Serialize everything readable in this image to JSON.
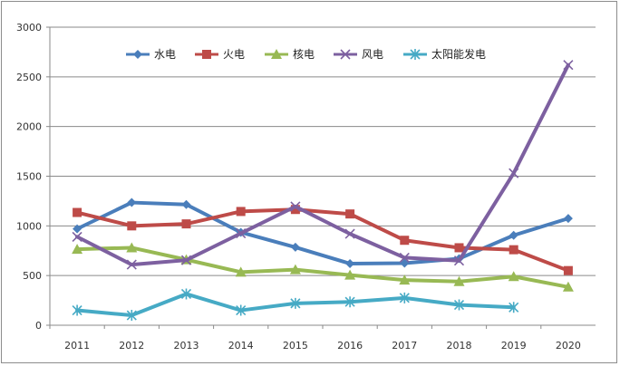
{
  "chart_data": {
    "type": "line",
    "categories": [
      "2011",
      "2012",
      "2013",
      "2014",
      "2015",
      "2016",
      "2017",
      "2018",
      "2019",
      "2020"
    ],
    "ylim": [
      0,
      3000
    ],
    "yticks": [
      0,
      500,
      1000,
      1500,
      2000,
      2500,
      3000
    ],
    "grid": true,
    "legend_position": "top",
    "series": [
      {
        "name": "水电",
        "color": "#4a7ebb",
        "marker": "diamond",
        "values": [
          970,
          1235,
          1215,
          935,
          785,
          620,
          625,
          670,
          905,
          1075
        ]
      },
      {
        "name": "火电",
        "color": "#be4b48",
        "marker": "square",
        "values": [
          1135,
          1000,
          1020,
          1145,
          1165,
          1120,
          855,
          780,
          760,
          550
        ]
      },
      {
        "name": "核电",
        "color": "#98b954",
        "marker": "triangle",
        "values": [
          765,
          780,
          660,
          535,
          560,
          505,
          455,
          440,
          490,
          385
        ]
      },
      {
        "name": "风电",
        "color": "#7d60a0",
        "marker": "x",
        "values": [
          890,
          610,
          655,
          925,
          1195,
          920,
          680,
          650,
          1530,
          2620
        ]
      },
      {
        "name": "太阳能发电",
        "color": "#46aac5",
        "marker": "star",
        "values": [
          150,
          100,
          315,
          150,
          220,
          235,
          275,
          205,
          180,
          null
        ]
      }
    ]
  }
}
